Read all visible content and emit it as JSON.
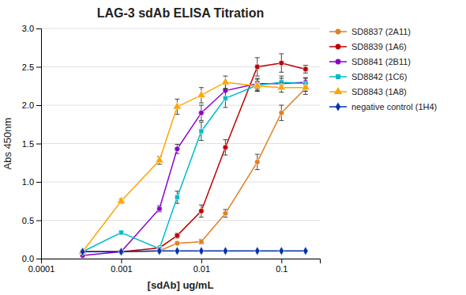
{
  "chart_data": {
    "type": "line",
    "title": "LAG-3 sdAb ELISA Titration",
    "x_label": "[sdAb] ug/mL",
    "y_label": "Abs 450nm",
    "log": "x",
    "grid": "y",
    "legend": "right",
    "xlim": [
      0.0001,
      0.30199517204020154
    ],
    "xticks": [
      0.0001,
      0.001,
      0.01,
      0.1
    ],
    "ylim": [
      0.0,
      3.0
    ],
    "yticks": [
      {
        "value": 0.0,
        "label": "0.0"
      },
      0.5,
      {
        "value": 1.0,
        "label": "1.0"
      },
      1.5,
      {
        "value": 2.0,
        "label": "2.0"
      },
      2.5,
      {
        "value": 3.0,
        "label": "3.0"
      }
    ],
    "x": [
      0.00033,
      0.001,
      0.003,
      0.005,
      0.01,
      0.02,
      0.05,
      0.1,
      0.2
    ],
    "series": [
      {
        "name": "SD8837 (2A11)",
        "color": "#E08020",
        "marker": "circle",
        "values": [
          0.09,
          0.09,
          0.1,
          0.2,
          0.22,
          0.59,
          1.26,
          1.9,
          2.22
        ],
        "errors": [
          0.01,
          0.01,
          0.01,
          0.02,
          0.03,
          0.05,
          0.1,
          0.1,
          0.08
        ]
      },
      {
        "name": "SD8839 (1A6)",
        "color": "#C00000",
        "marker": "circle",
        "values": [
          0.09,
          0.09,
          0.14,
          0.3,
          0.62,
          1.45,
          2.5,
          2.55,
          2.47
        ],
        "errors": [
          0.01,
          0.01,
          0.02,
          0.03,
          0.08,
          0.1,
          0.12,
          0.12,
          0.05
        ]
      },
      {
        "name": "SD8841 (2B11)",
        "color": "#8B00CC",
        "marker": "circle",
        "values": [
          0.04,
          0.09,
          0.65,
          1.43,
          1.9,
          2.19,
          2.28,
          2.28,
          2.3
        ],
        "errors": [
          0.01,
          0.01,
          0.04,
          0.06,
          0.1,
          0.08,
          0.07,
          0.07,
          0.06
        ]
      },
      {
        "name": "SD8842 (1C6)",
        "color": "#00BBCC",
        "marker": "square",
        "values": [
          0.09,
          0.34,
          0.13,
          0.8,
          1.66,
          2.09,
          2.26,
          2.3,
          2.28
        ],
        "errors": [
          0.01,
          0.02,
          0.02,
          0.08,
          0.12,
          0.12,
          0.08,
          0.08,
          0.07
        ]
      },
      {
        "name": "SD8843 (1A8)",
        "color": "#FFA500",
        "marker": "triangle",
        "values": [
          0.09,
          0.75,
          1.28,
          1.98,
          2.13,
          2.3,
          2.25,
          2.23,
          2.23
        ],
        "errors": [
          0.01,
          0.03,
          0.05,
          0.1,
          0.1,
          0.08,
          0.06,
          0.06,
          0.05
        ]
      },
      {
        "name": "negative control (1H4)",
        "color": "#0033AA",
        "marker": "diamond",
        "values": [
          0.09,
          0.09,
          0.1,
          0.1,
          0.1,
          0.1,
          0.1,
          0.1,
          0.1
        ],
        "errors": [
          0.005,
          0.005,
          0.005,
          0.005,
          0.005,
          0.005,
          0.005,
          0.005,
          0.005
        ]
      }
    ]
  }
}
